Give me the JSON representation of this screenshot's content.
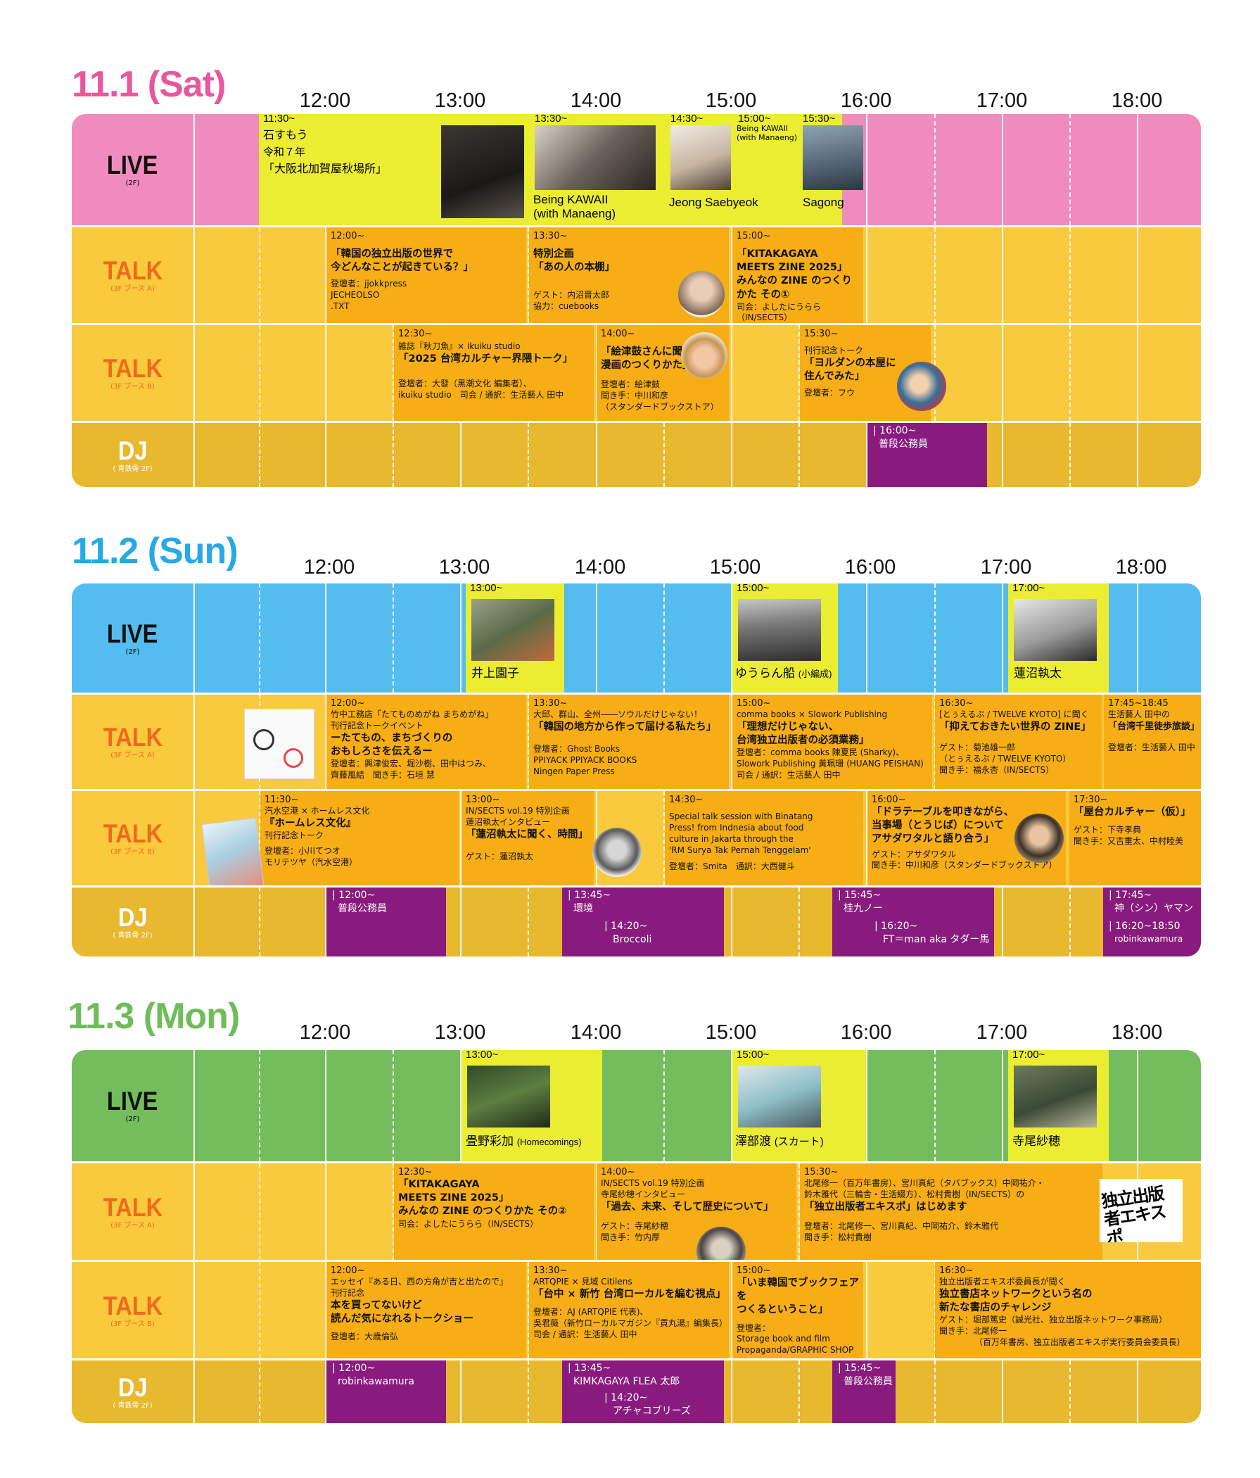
{
  "hours": [
    "12:00",
    "13:00",
    "14:00",
    "15:00",
    "16:00",
    "17:00",
    "18:00"
  ],
  "row_labels": {
    "live": {
      "main": "LIVE",
      "sub": "(2F)"
    },
    "talk_a": {
      "main": "TALK",
      "sub": "(3F ブース A)"
    },
    "talk_b": {
      "main": "TALK",
      "sub": "(3F ブース B)"
    },
    "dj": {
      "main": "DJ",
      "sub": "( 青鉄骨 2F)"
    }
  },
  "colors": {
    "day1": "#e8579c",
    "day2": "#27a9e6",
    "day3": "#6fbd5a",
    "live1": "#f08cbd",
    "live2": "#55bcef",
    "live3": "#74bd5d",
    "talk": "#f9c93e",
    "dj": "#e8b82e",
    "event": "#f6ad16",
    "live_event": "#ebed33",
    "dj_event": "#8a1b7e",
    "talk_label": "#ee6a1b"
  },
  "day1": {
    "title": "11.1 (Sat)",
    "live": [
      {
        "time": "11:30~",
        "lines": [
          "石すもう",
          "令和７年",
          "「大阪北加賀屋秋場所」"
        ]
      },
      {
        "time": "13:30~",
        "name": "Being KAWAII\n(with Manaeng)"
      },
      {
        "time": "14:30~",
        "name": "Jeong Saebyeok"
      },
      {
        "time": "15:00~",
        "name": "Being KAWAII\n(with Manaeng)"
      },
      {
        "time": "15:30~",
        "name": "Sagong"
      }
    ],
    "talk_a": [
      {
        "time": "12:00~",
        "lines": [
          "「韓国の独立出版の世界で",
          "今どんなことが起きている？」"
        ],
        "meta": [
          "登壇者：jjokkpress",
          "JECHEOLSO",
          ".TXT"
        ]
      },
      {
        "time": "13:30~",
        "lines": [
          "特別企画",
          "「あの人の本棚」"
        ],
        "meta": [
          "ゲスト：内沼晋太郎",
          "協力：cuebooks"
        ]
      },
      {
        "time": "15:00~",
        "lines": [
          "「KITAKAGAYA",
          "MEETS ZINE 2025」",
          "みんなの ZINE のつくりかた その①"
        ],
        "meta": [
          "司会：よしたにうらら（IN/SECTS）"
        ]
      }
    ],
    "talk_b": [
      {
        "time": "12:30~",
        "lines": [
          "雑誌『秋刀魚』× ikuiku studio",
          "「2025 台湾カルチャー界隈トーク」"
        ],
        "meta": [
          "登壇者：大發（黒潮文化 編集者）、",
          "ikuiku studio　司会 / 通訳：生活藝人 田中"
        ]
      },
      {
        "time": "14:00~",
        "lines": [
          "「絵津鼓さんに聞く",
          "漫画のつくりかた」"
        ],
        "meta": [
          "登壇者：絵津鼓",
          "聞き手：中川和彦",
          "（スタンダードブックストア）"
        ]
      },
      {
        "time": "15:30~",
        "lines": [
          "刊行記念トーク",
          "「ヨルダンの本屋に",
          "住んでみた」"
        ],
        "meta": [
          "登壇者：フウ"
        ]
      }
    ],
    "dj": [
      {
        "time": "| 16:00~",
        "name": "普段公務員"
      }
    ]
  },
  "day2": {
    "title": "11.2 (Sun)",
    "live": [
      {
        "time": "13:00~",
        "name": "井上園子"
      },
      {
        "time": "15:00~",
        "name": "ゆうらん船",
        "suffix": "(小編成)"
      },
      {
        "time": "17:00~",
        "name": "蓮沼執太"
      }
    ],
    "talk_a": [
      {
        "time": "12:00~",
        "lines": [
          "竹中工務店「たてものめがね まちめがね」",
          "刊行記念トークイベント",
          "ーたてもの、まちづくりの",
          "おもしろさを伝えるー"
        ],
        "meta": [
          "登壇者：興津俊宏、堀沙樹、田中はつみ、",
          "齊藤風結　聞き手：石垣 慧"
        ]
      },
      {
        "time": "13:30~",
        "lines": [
          "大邱、群山、全州――ソウルだけじゃない！",
          "「韓国の地方から作って届ける私たち」"
        ],
        "meta": [
          "登壇者：Ghost Books",
          "PPIYACK PPIYACK BOOKS",
          "Ningen Paper Press"
        ]
      },
      {
        "time": "15:00~",
        "lines": [
          "comma books × Slowork Publishing",
          "「理想だけじゃない、",
          "台湾独立出版者の必須業務」"
        ],
        "meta": [
          "登壇者：comma books 陳夏民 (Sharky)、",
          "Slowork Publishing 黃珮珊 (HUANG PEISHAN)",
          "司会 / 通訳：生活藝人 田中"
        ]
      },
      {
        "time": "16:30~",
        "lines": [
          "[とぅえるぶ / TWELVE KYOTO] に聞く",
          "「抑えておきたい世界の ZINE」"
        ],
        "meta": [
          "ゲスト：菊池雄一郎",
          "（とぅえるぶ / TWELVE KYOTO）",
          "聞き手：福永杏（IN/SECTS）"
        ]
      },
      {
        "time": "17:45~18:45",
        "lines": [
          "生活藝人 田中の",
          "「台湾千里徒歩旅談」"
        ],
        "meta": [
          "登壇者：生活藝人 田中"
        ]
      }
    ],
    "talk_b": [
      {
        "time": "11:30~",
        "lines": [
          "汽水空港 × ホームレス文化",
          "『ホームレス文化』",
          "刊行記念トーク"
        ],
        "meta": [
          "登壇者：小川てつオ",
          "モリテツヤ（汽水空港）"
        ]
      },
      {
        "time": "13:00~",
        "lines": [
          "IN/SECTS vol.19 特別企画",
          "蓮沼執太インタビュー",
          "「蓮沼執太に聞く、時間」"
        ],
        "meta": [
          "ゲスト：蓮沼執太"
        ]
      },
      {
        "time": "14:30~",
        "lines": [
          "Special talk session with Binatang",
          "Press! from Indnesia about food",
          "culture in Jakarta through the",
          "'RM Surya Tak Pernah Tenggelam'"
        ],
        "meta": [
          "登壇者：Smita　通訳：大西健斗"
        ]
      },
      {
        "time": "16:00~",
        "lines": [
          "「ドラテーブルを叩きながら、",
          "当事場（とうじば）について",
          "アサダワタルと語り合う」"
        ],
        "meta": [
          "ゲスト：アサダワタル",
          "聞き手：中川和彦（スタンダードブックストア）"
        ]
      },
      {
        "time": "17:30~",
        "lines": [
          "「屋台カルチャー（仮）」"
        ],
        "meta": [
          "ゲスト：下寺孝典",
          "聞き手：又吉重太、中村睦美"
        ]
      }
    ],
    "dj": [
      {
        "time": "| 12:00~",
        "name": "普段公務員"
      },
      {
        "time": "| 13:45~",
        "name": "環境",
        "time2": "| 14:20~",
        "name2": "Broccoli"
      },
      {
        "time": "| 15:45~",
        "name": "桂九ノー",
        "time2": "| 16:20~",
        "name2": "FT＝man aka タダー馬"
      },
      {
        "time": "| 17:45~",
        "name": "神（シン）ヤマン",
        "time2": "| 16:20~18:50",
        "name2": "robinkawamura"
      }
    ]
  },
  "day3": {
    "title": "11.3 (Mon)",
    "live": [
      {
        "time": "13:00~",
        "name": "畳野彩加",
        "suffix": "(Homecomings)"
      },
      {
        "time": "15:00~",
        "name": "澤部渡",
        "suffix": "(スカート)"
      },
      {
        "time": "17:00~",
        "name": "寺尾紗穂"
      }
    ],
    "talk_a": [
      {
        "time": "12:30~",
        "lines": [
          "「KITAKAGAYA",
          "MEETS ZINE 2025」",
          "みんなの ZINE のつくりかた その②"
        ],
        "meta": [
          "司会：よしたにうらら（IN/SECTS）"
        ]
      },
      {
        "time": "14:00~",
        "lines": [
          "IN/SECTS vol.19 特別企画",
          "寺尾紗穂インタビュー",
          "「過去、未来、そして歴史について」"
        ],
        "meta": [
          "ゲスト：寺尾紗穂",
          "聞き手：竹内厚"
        ]
      },
      {
        "time": "15:30~",
        "lines": [
          "北尾修一（百万年書房）、宮川真紀（タバブックス）中岡祐介・",
          "鈴木雅代（三輪舎・生活綴方）、松村貴樹（IN/SECTS）の",
          "「独立出版者エキスポ」はじめます"
        ],
        "meta": [
          "登壇者：北尾修一、宮川真紀、中岡祐介、鈴木雅代",
          "聞き手：松村貴樹"
        ]
      }
    ],
    "talk_b": [
      {
        "time": "12:00~",
        "lines": [
          "エッセイ『ある日、西の方角が吉と出たので』",
          "刊行記念",
          "本を買ってないけど",
          "読んだ気になれるトークショー"
        ],
        "meta": [
          "登壇者：大歳倫弘"
        ]
      },
      {
        "time": "13:30~",
        "lines": [
          "ARTQPIE × 見域 Citilens",
          "「台中 × 新竹 台湾ローカルを編む視点」"
        ],
        "meta": [
          "登壇者：AJ (ARTQPIE 代表)、",
          "吳君薇（新竹ローカルマガジン『貢丸湯』編集長）",
          "司会 / 通訳：生活藝人 田中"
        ]
      },
      {
        "time": "15:00~",
        "lines": [
          "「いま韓国でブックフェアを",
          "つくるということ」"
        ],
        "meta": [
          "登壇者：",
          "Storage book and film",
          "Propaganda/GRAPHIC SHOP"
        ]
      },
      {
        "time": "16:30~",
        "lines": [
          "独立出版者エキスポ委員長が聞く",
          "独立書店ネットワークという名の",
          "新たな書店のチャレンジ"
        ],
        "meta": [
          "ゲスト：堀部篤史（誠光社、独立出版ネットワーク事務局）",
          "聞き手：北尾修一",
          "（百万年書房、独立出版者エキスポ実行委員会委員長）"
        ]
      }
    ],
    "dj": [
      {
        "time": "| 12:00~",
        "name": "robinkawamura"
      },
      {
        "time": "| 13:45~",
        "name": "KIMKAGAYA FLEA 太郎",
        "time2": "| 14:20~",
        "name2": "アチャコブリーズ"
      },
      {
        "time": "| 15:45~",
        "name": "普段公務員"
      }
    ],
    "logo_text": "独立出版者エキスポ"
  }
}
